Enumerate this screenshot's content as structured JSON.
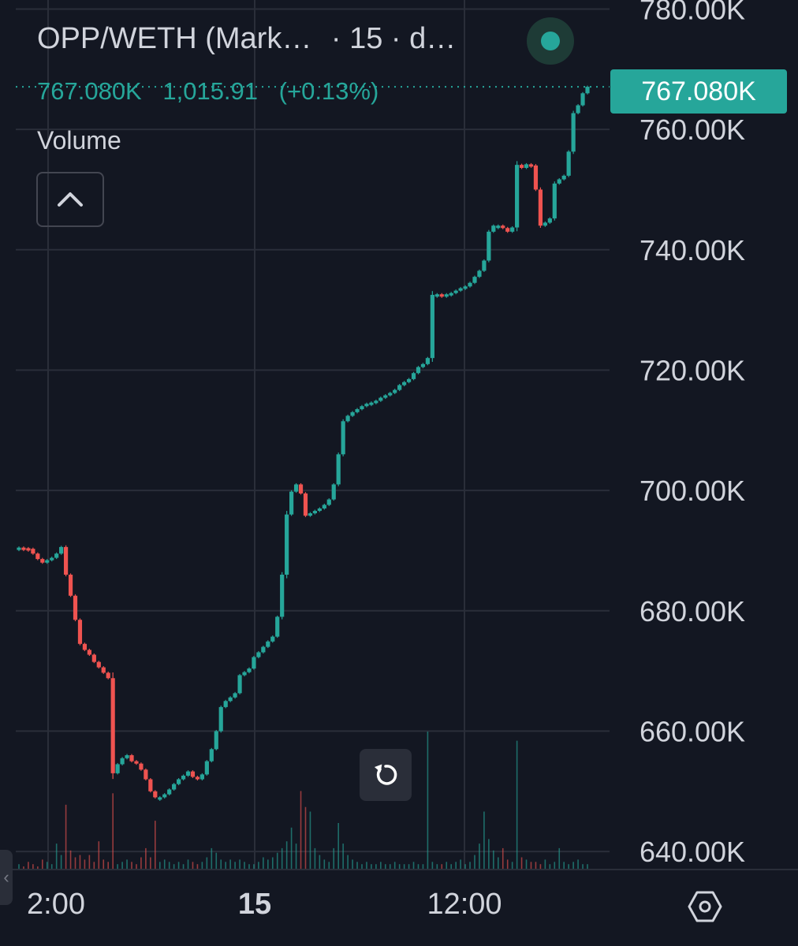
{
  "legend": {
    "symbol": "OPP/WETH (Mark…",
    "interval": "· 15 · d…",
    "last_value": "767.080K",
    "change": "1,015.91",
    "change_pct": "(+0.13%)"
  },
  "volume_label": "Volume",
  "price_tag": "767.080K",
  "colors": {
    "up": "#26a69a",
    "down": "#ef5350",
    "background": "#131722",
    "grid": "#2a2e39"
  },
  "icons": {
    "status": "live-dot-icon",
    "collapse": "chevron-up-icon",
    "reset": "reset-icon",
    "settings": "settings-icon"
  },
  "time_axis": [
    {
      "label": "2:00",
      "bold": false
    },
    {
      "label": "15",
      "bold": true
    },
    {
      "label": "12:00",
      "bold": false
    }
  ],
  "chart_data": {
    "type": "candlestick",
    "title": "OPP/WETH (Mark…",
    "y_axis": {
      "ticks": [
        "640.00K",
        "660.00K",
        "680.00K",
        "700.00K",
        "720.00K",
        "740.00K",
        "760.00K",
        "780.00K"
      ],
      "tick_values": [
        640000,
        660000,
        680000,
        700000,
        720000,
        740000,
        760000,
        780000
      ],
      "range": [
        637000,
        781500
      ]
    },
    "x_axis": {
      "ticks": [
        "2:00",
        "15",
        "12:00"
      ]
    },
    "grid": true,
    "close_prices": [
      690500,
      690400,
      690300,
      689500,
      688600,
      688000,
      688400,
      688800,
      689500,
      690600,
      686000,
      682500,
      678500,
      674500,
      673500,
      672700,
      671500,
      670600,
      669700,
      668800,
      653000,
      654500,
      655500,
      656000,
      655000,
      654600,
      653600,
      652000,
      650000,
      649000,
      649000,
      649500,
      650300,
      651200,
      652000,
      652600,
      653300,
      652400,
      652000,
      652800,
      655000,
      657000,
      660000,
      664000,
      665000,
      665600,
      666300,
      669300,
      669800,
      670400,
      672300,
      673100,
      674000,
      674900,
      675700,
      679000,
      686000,
      696000,
      699800,
      701000,
      699500,
      695800,
      696200,
      696600,
      697000,
      697600,
      698500,
      701000,
      706000,
      711500,
      712400,
      713000,
      713500,
      714000,
      714400,
      714600,
      714900,
      715400,
      715800,
      716200,
      716700,
      717500,
      718000,
      718500,
      719500,
      720500,
      721000,
      722000,
      732500,
      732600,
      732200,
      732600,
      732800,
      733200,
      733600,
      733900,
      734500,
      735500,
      736500,
      738200,
      743000,
      744000,
      744000,
      743600,
      743000,
      743700,
      754100,
      753600,
      754200,
      754000,
      750000,
      744000,
      744500,
      745200,
      751000,
      751700,
      752300,
      756300,
      762700,
      764000,
      766000,
      767080
    ],
    "volume_relative": [
      0.02,
      0.01,
      0.03,
      0.02,
      0.01,
      0.04,
      0.03,
      0.02,
      0.11,
      0.06,
      0.28,
      0.08,
      0.05,
      0.06,
      0.04,
      0.06,
      0.03,
      0.12,
      0.04,
      0.03,
      0.33,
      0.02,
      0.03,
      0.04,
      0.03,
      0.02,
      0.05,
      0.09,
      0.05,
      0.21,
      0.03,
      0.04,
      0.03,
      0.02,
      0.03,
      0.02,
      0.04,
      0.03,
      0.02,
      0.03,
      0.05,
      0.09,
      0.07,
      0.04,
      0.03,
      0.04,
      0.03,
      0.04,
      0.03,
      0.02,
      0.02,
      0.03,
      0.05,
      0.04,
      0.05,
      0.07,
      0.09,
      0.12,
      0.18,
      0.11,
      0.34,
      0.27,
      0.25,
      0.09,
      0.06,
      0.04,
      0.03,
      0.09,
      0.2,
      0.11,
      0.06,
      0.04,
      0.03,
      0.02,
      0.03,
      0.02,
      0.02,
      0.03,
      0.02,
      0.02,
      0.03,
      0.02,
      0.02,
      0.02,
      0.03,
      0.02,
      0.02,
      0.6,
      0.03,
      0.02,
      0.02,
      0.03,
      0.02,
      0.03,
      0.04,
      0.02,
      0.03,
      0.06,
      0.11,
      0.25,
      0.13,
      0.08,
      0.05,
      0.09,
      0.04,
      0.03,
      0.56,
      0.05,
      0.04,
      0.03,
      0.03,
      0.02,
      0.04,
      0.02,
      0.03,
      0.09,
      0.03,
      0.02,
      0.03,
      0.04,
      0.02,
      0.02
    ]
  }
}
